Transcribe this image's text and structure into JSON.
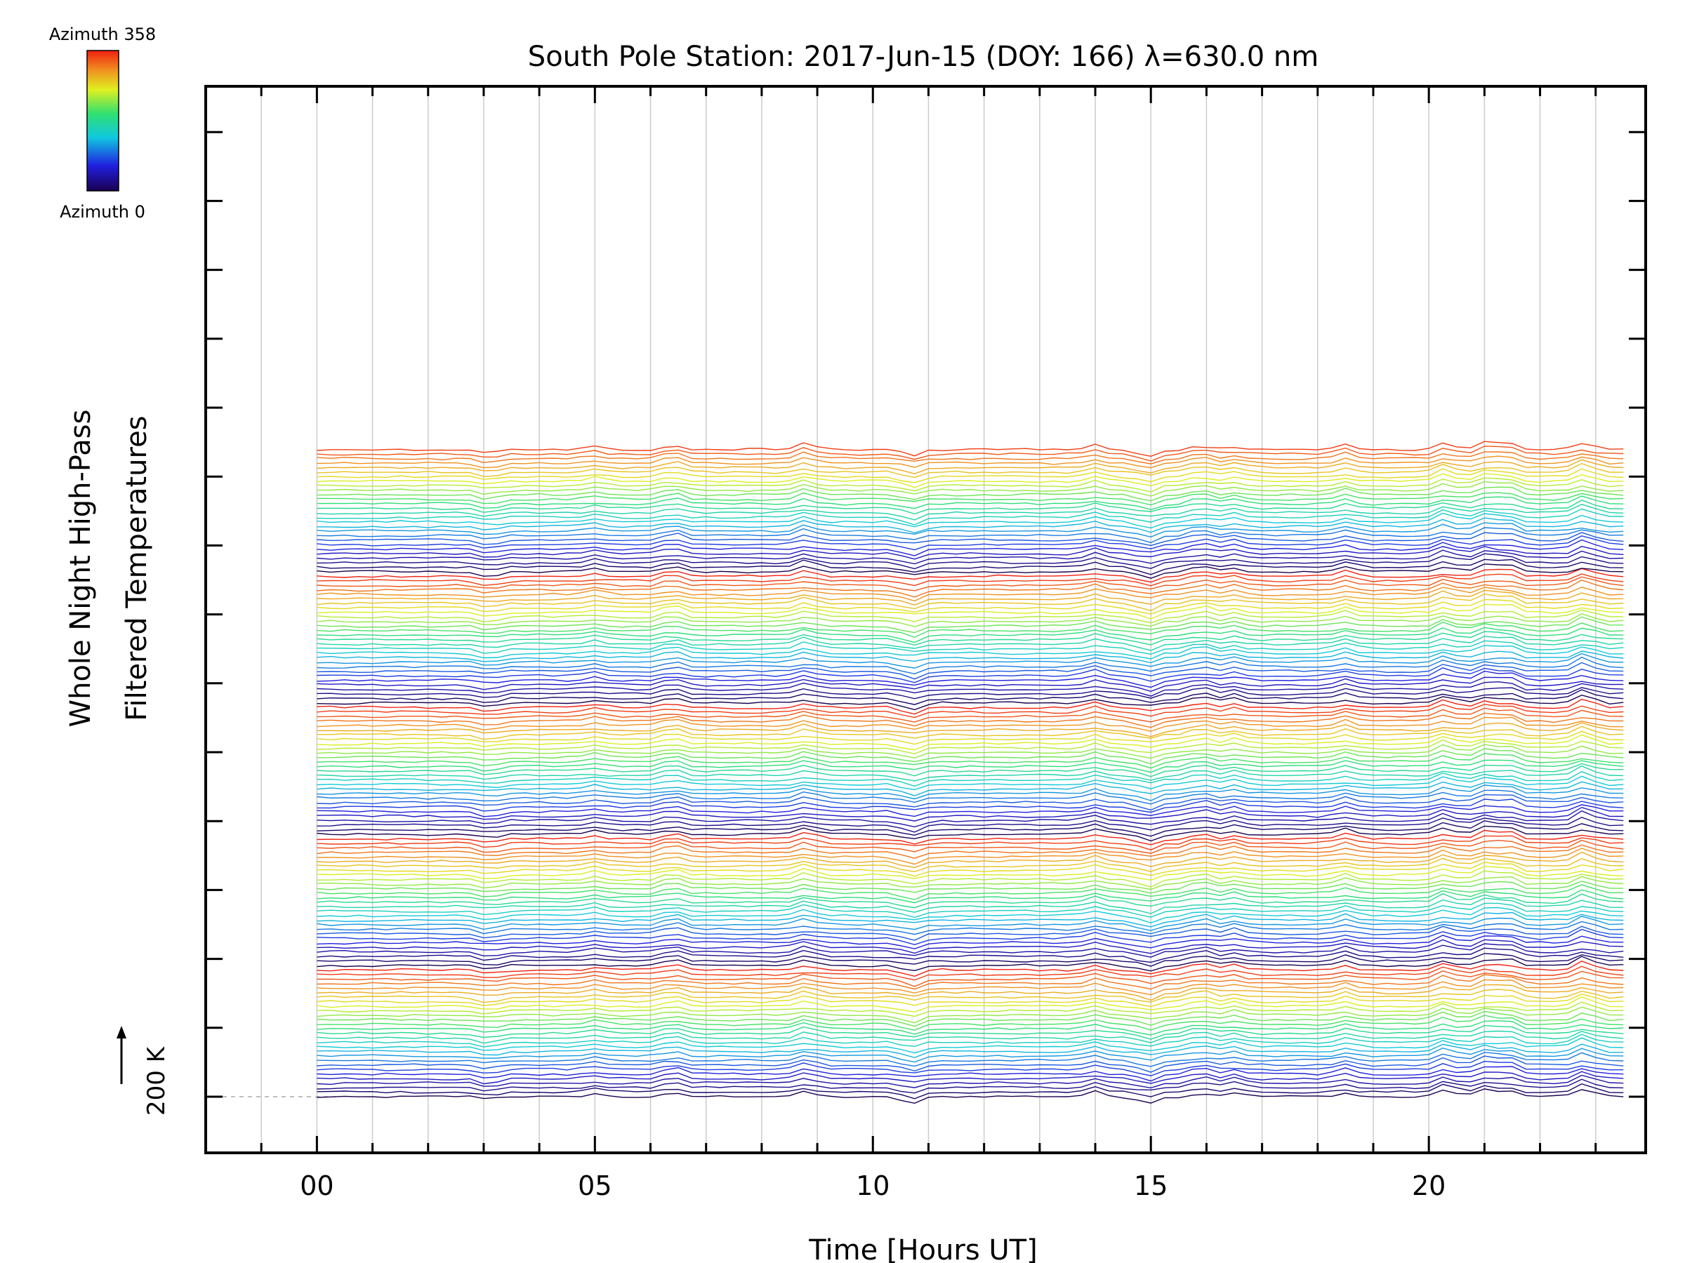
{
  "chart_data": {
    "type": "line",
    "title": "South Pole Station: 2017-Jun-15 (DOY: 166) λ=630.0 nm",
    "xlabel": "Time [Hours UT]",
    "ylabel": [
      "Whole Night High-Pass",
      "Filtered Temperatures"
    ],
    "xlim": [
      -2,
      23.9
    ],
    "x_ticks": [
      0,
      5,
      10,
      15,
      20
    ],
    "x_tick_labels": [
      "00",
      "05",
      "10",
      "15",
      "20"
    ],
    "x_minor_step": 1,
    "grid": "vertical every hour",
    "data_range_hours": [
      0,
      23.7
    ],
    "sample_step_hours": 0.25,
    "num_traces": 144,
    "trace_spacing_K": 20,
    "colormap": "rainbow (dark blue → blue → cyan → green → yellow → orange → red)",
    "colorbar": {
      "top_label": "Azimuth 358",
      "bottom_label": "Azimuth 0"
    },
    "scale_bar_label": "200 K",
    "events": [
      {
        "hour": 3.1,
        "amplitude_K": -22
      },
      {
        "hour": 5.0,
        "amplitude_K": 16
      },
      {
        "hour": 6.4,
        "amplitude_K": 30
      },
      {
        "hour": 8.8,
        "amplitude_K": 28
      },
      {
        "hour": 10.7,
        "amplitude_K": -30
      },
      {
        "hour": 14.0,
        "amplitude_K": 24
      },
      {
        "hour": 14.95,
        "amplitude_K": -30
      },
      {
        "hour": 15.9,
        "amplitude_K": 30
      },
      {
        "hour": 16.5,
        "amplitude_K": 22
      },
      {
        "hour": 18.5,
        "amplitude_K": 25
      },
      {
        "hour": 20.3,
        "amplitude_K": 35
      },
      {
        "hour": 21.0,
        "amplitude_K": 36
      },
      {
        "hour": 21.4,
        "amplitude_K": 38
      },
      {
        "hour": 22.8,
        "amplitude_K": 40
      }
    ]
  }
}
